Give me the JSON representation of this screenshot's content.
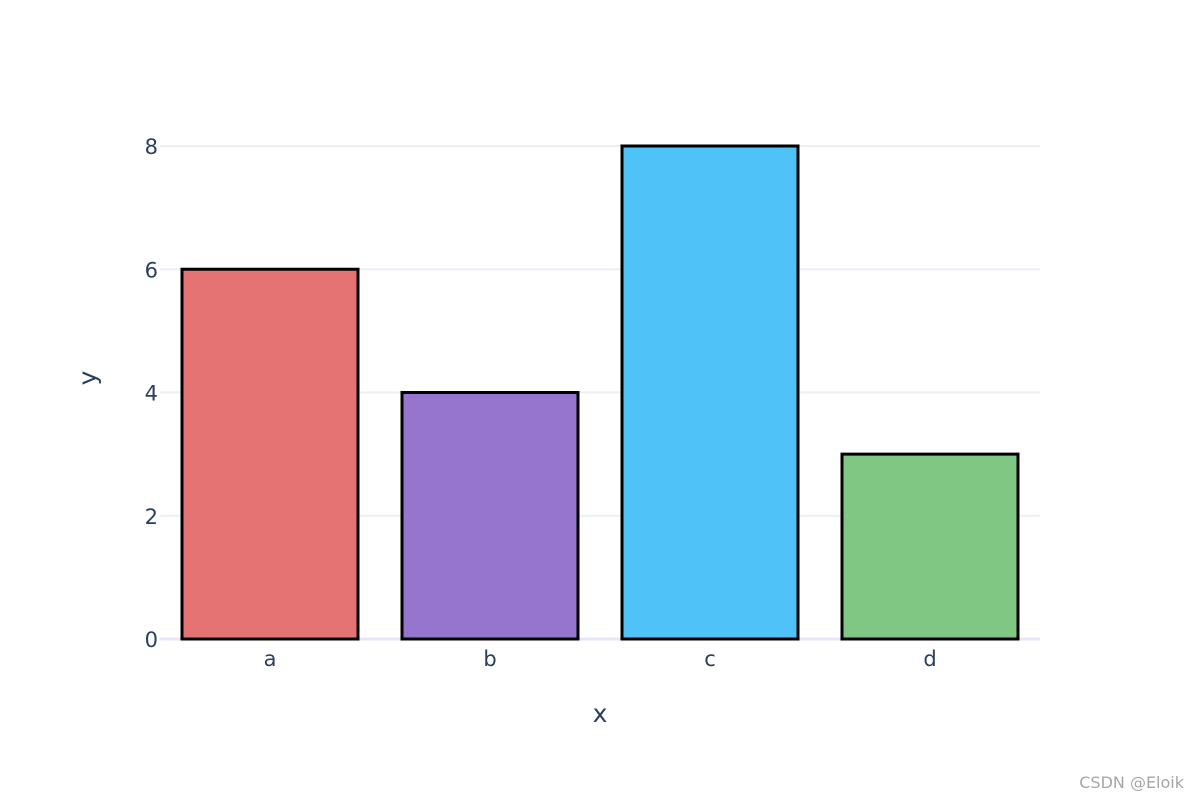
{
  "chart_data": {
    "type": "bar",
    "categories": [
      "a",
      "b",
      "c",
      "d"
    ],
    "values": [
      6,
      4,
      8,
      3
    ],
    "colors": [
      "#e57373",
      "#9575cd",
      "#4fc3f7",
      "#81c784"
    ],
    "bar_outline_color": "#000000",
    "title": "",
    "xlabel": "x",
    "ylabel": "y",
    "ylim": [
      0,
      8.2
    ],
    "yticks": [
      0,
      2,
      4,
      6,
      8
    ],
    "grid": true,
    "grid_color": "#eeeff5",
    "zero_line_color": "#e8e5fb",
    "text_color": "#2a3f5f"
  },
  "watermark": "CSDN @Eloik"
}
